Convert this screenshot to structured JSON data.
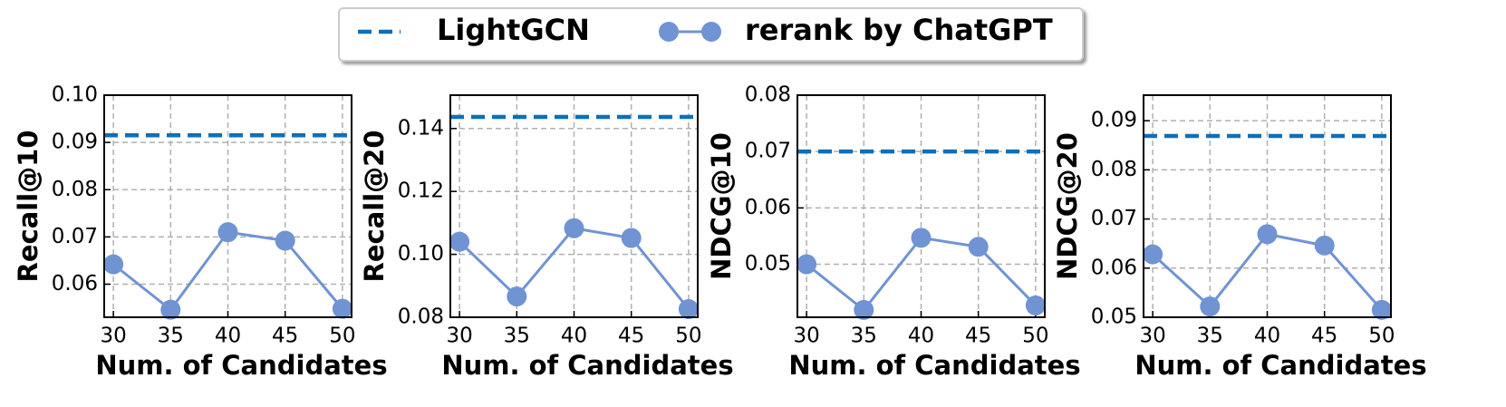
{
  "chart_data": [
    {
      "type": "line",
      "ylabel": "Recall@10",
      "xlabel": "Num. of Candidates",
      "x": [
        30,
        35,
        40,
        45,
        50
      ],
      "xlim": [
        29.2,
        50.8
      ],
      "xticks": [
        30,
        35,
        40,
        45,
        50
      ],
      "ylim": [
        0.053,
        0.1
      ],
      "yticks": [
        0.06,
        0.07,
        0.08,
        0.09,
        {
          "value": 0.1,
          "label": "0.10"
        }
      ],
      "grid": true,
      "series": [
        {
          "name": "LightGCN",
          "color": "#0f6fb8",
          "style": "dashed",
          "value": 0.0915
        },
        {
          "name": "rerank by ChatGPT",
          "color": "#7093d4",
          "style": "marker-line",
          "values": [
            0.0642,
            0.0546,
            0.071,
            0.0692,
            0.0548
          ]
        }
      ]
    },
    {
      "type": "line",
      "ylabel": "Recall@20",
      "xlabel": "Num. of Candidates",
      "x": [
        30,
        35,
        40,
        45,
        50
      ],
      "xlim": [
        29.2,
        50.8
      ],
      "xticks": [
        30,
        35,
        40,
        45,
        50
      ],
      "ylim": [
        0.08,
        0.1506
      ],
      "yticks": [
        0.08,
        {
          "value": 0.1,
          "label": "0.10"
        },
        0.12,
        0.14
      ],
      "grid": true,
      "series": [
        {
          "color": "#0f6fb8",
          "style": "dashed",
          "value": 0.1437
        },
        {
          "color": "#7093d4",
          "style": "marker-line",
          "values": [
            0.104,
            0.0866,
            0.1083,
            0.1052,
            0.0826
          ]
        }
      ]
    },
    {
      "type": "line",
      "ylabel": "NDCG@10",
      "xlabel": "Num. of Candidates",
      "x": [
        30,
        35,
        40,
        45,
        50
      ],
      "xlim": [
        29.2,
        50.8
      ],
      "xticks": [
        30,
        35,
        40,
        45,
        50
      ],
      "ylim": [
        0.0406,
        0.08
      ],
      "yticks": [
        0.05,
        0.06,
        0.07,
        0.08
      ],
      "grid": true,
      "series": [
        {
          "color": "#0f6fb8",
          "style": "dashed",
          "value": 0.07
        },
        {
          "color": "#7093d4",
          "style": "marker-line",
          "values": [
            0.05,
            0.0419,
            0.0547,
            0.0531,
            0.0427
          ]
        }
      ]
    },
    {
      "type": "line",
      "ylabel": "NDCG@20",
      "xlabel": "Num. of Candidates",
      "x": [
        30,
        35,
        40,
        45,
        50
      ],
      "xlim": [
        29.2,
        50.8
      ],
      "xticks": [
        30,
        35,
        40,
        45,
        50
      ],
      "ylim": [
        0.05,
        0.0952
      ],
      "yticks": [
        0.05,
        0.06,
        0.07,
        0.08,
        0.09
      ],
      "grid": true,
      "series": [
        {
          "color": "#0f6fb8",
          "style": "dashed",
          "value": 0.0869
        },
        {
          "color": "#7093d4",
          "style": "marker-line",
          "values": [
            0.0628,
            0.0522,
            0.0669,
            0.0646,
            0.0515
          ]
        }
      ]
    }
  ]
}
